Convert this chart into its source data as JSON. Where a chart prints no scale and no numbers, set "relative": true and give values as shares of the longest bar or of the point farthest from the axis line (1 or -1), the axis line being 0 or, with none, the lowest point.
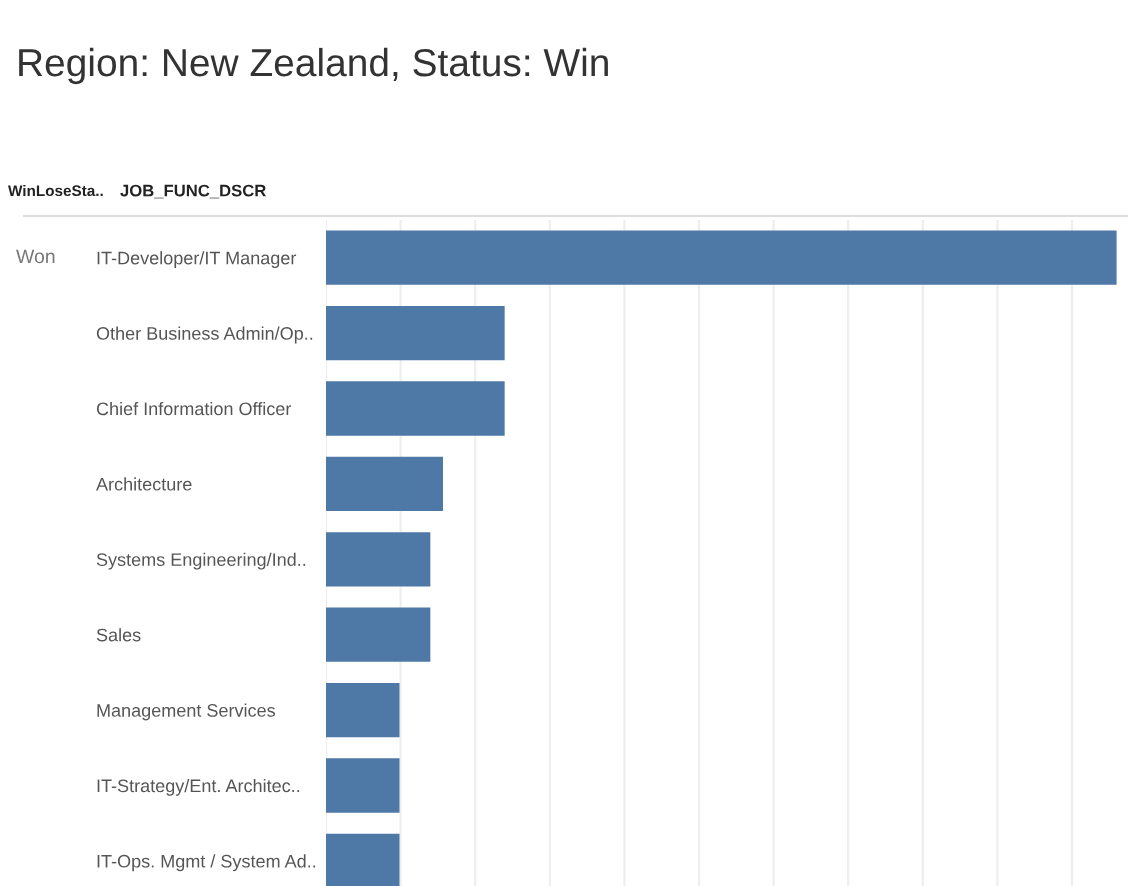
{
  "chart_data": {
    "type": "bar",
    "orientation": "horizontal",
    "relative": true,
    "title": "Region: New Zealand, Status: Win",
    "ylabel": "JOB_FUNC_DSCR",
    "annotations": [
      "WinLoseSta..",
      "Won"
    ],
    "categories": [
      "IT-Developer/IT Manager",
      "Other Business Admin/Op..",
      "Chief Information Officer",
      "Architecture",
      "Systems Engineering/Ind..",
      "Sales",
      "Management Services",
      "IT-Strategy/Ent. Architec..",
      "IT-Ops. Mgmt / System Ad.."
    ],
    "values": [
      1,
      0.226,
      0.226,
      0.148,
      0.132,
      0.132,
      0.093,
      0.093,
      0.093
    ],
    "color": "#4e79a7",
    "grid": "x"
  }
}
